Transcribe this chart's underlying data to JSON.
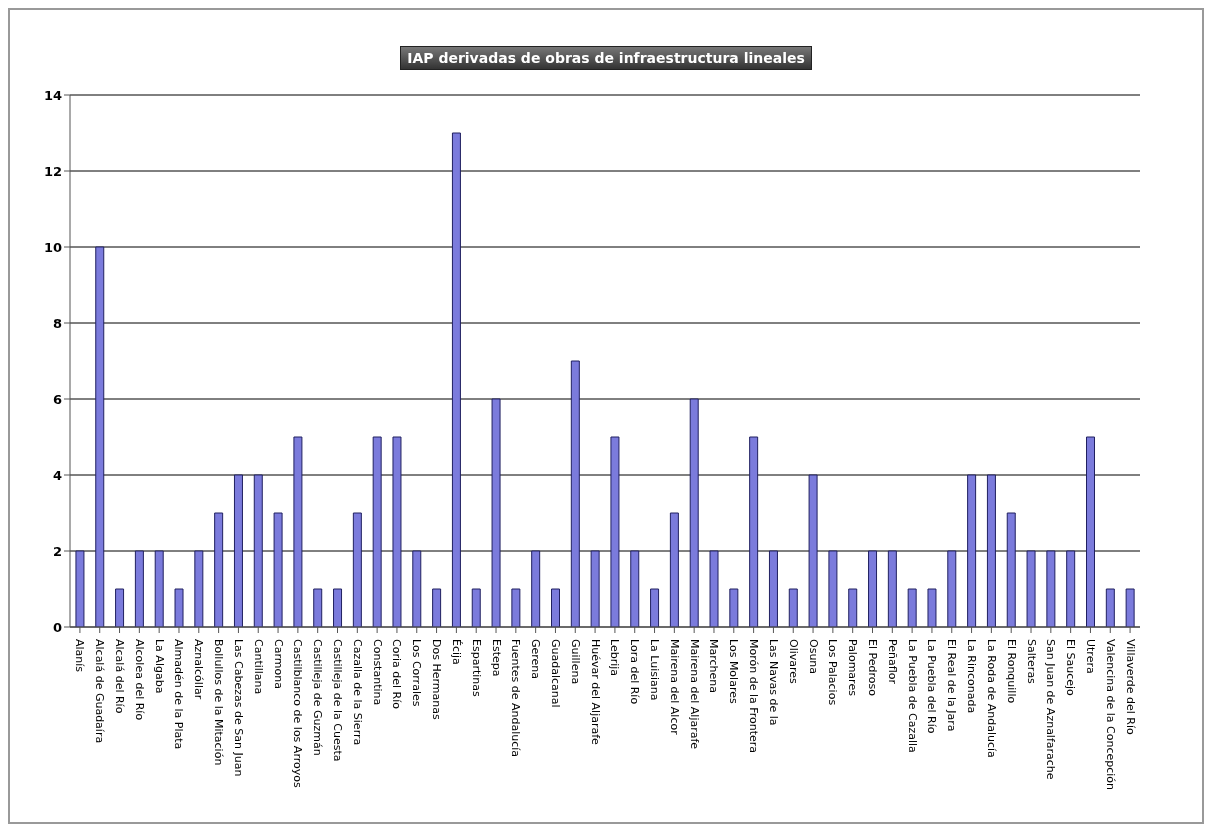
{
  "chart_data": {
    "type": "bar",
    "title": "IAP derivadas de obras de infraestructura lineales",
    "categories": [
      "Alanís",
      "Alcalá de Guadaíra",
      "Alcalá del Río",
      "Alcolea del Río",
      "La Algaba",
      "Almadén de la Plata",
      "Aznalcóllar",
      "Bollullos de la Mitación",
      "Las Cabezas de San Juan",
      "Cantillana",
      "Carmona",
      "Castilblanco de los Arroyos",
      "Castilleja de Guzmán",
      "Castilleja de la Cuesta",
      "Cazalla de la Sierra",
      "Constantina",
      "Coria del Río",
      "Los Corrales",
      "Dos Hermanas",
      "Écija",
      "Espartinas",
      "Estepa",
      "Fuentes de Andalucía",
      "Gerena",
      "Guadalcanal",
      "Guillena",
      "Huévar del Aljarafe",
      "Lebrija",
      "Lora del Río",
      "La Luisiana",
      "Mairena del Alcor",
      "Mairena del Aljarafe",
      "Marchena",
      "Los Molares",
      "Morón de la Frontera",
      "Las Navas de la",
      "Olivares",
      "Osuna",
      "Los Palacios",
      "Palomares",
      "El Pedroso",
      "Peñaflor",
      "La Puebla de Cazalla",
      "La Puebla del Río",
      "El Real de la Jara",
      "La Rinconada",
      "La Roda de Andalucía",
      "El Ronquillo",
      "Salteras",
      "San Juan de Aznalfarache",
      "El Saucejo",
      "Utrera",
      "Valencina de la Concepción",
      "Villaverde del Río"
    ],
    "values": [
      2,
      10,
      1,
      2,
      2,
      1,
      2,
      3,
      4,
      4,
      3,
      5,
      1,
      1,
      3,
      5,
      5,
      2,
      1,
      13,
      1,
      6,
      1,
      2,
      1,
      7,
      2,
      5,
      2,
      1,
      3,
      6,
      2,
      1,
      5,
      2,
      1,
      4,
      2,
      1,
      2,
      2,
      1,
      1,
      2,
      4,
      4,
      3,
      2,
      2,
      2,
      5,
      1,
      1
    ],
    "color": "#7b7bdc",
    "ylim": [
      0,
      14
    ],
    "yticks": [
      0,
      2,
      4,
      6,
      8,
      10,
      12,
      14
    ],
    "grid": "y",
    "legend": false
  }
}
